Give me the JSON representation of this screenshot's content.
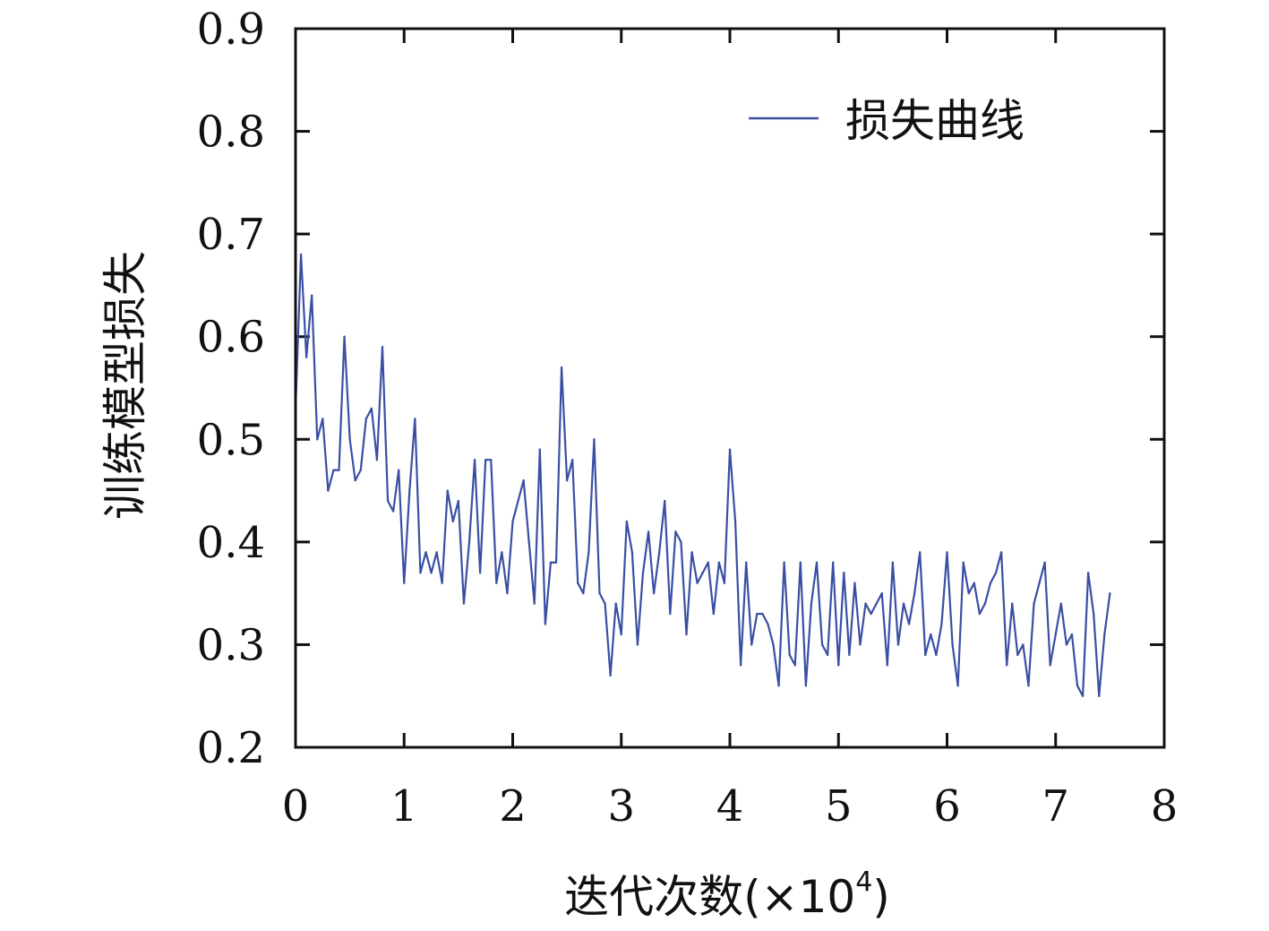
{
  "chart_data": {
    "type": "line",
    "title": "",
    "xlabel": "迭代次数(×10⁴)",
    "xlabel_main": "迭代次数(×10",
    "xlabel_exp": "4",
    "xlabel_close": ")",
    "ylabel": "训练模型损失",
    "xlim": [
      0,
      8
    ],
    "ylim": [
      0.2,
      0.9
    ],
    "xticks": [
      "0",
      "1",
      "2",
      "3",
      "4",
      "5",
      "6",
      "7",
      "8"
    ],
    "yticks": [
      "0.2",
      "0.3",
      "0.4",
      "0.5",
      "0.6",
      "0.7",
      "0.8",
      "0.9"
    ],
    "legend_position": "top-right",
    "grid": false,
    "series": [
      {
        "name": "损失曲线",
        "color": "#3a4fa3",
        "x": [
          0,
          0.05,
          0.1,
          0.15,
          0.2,
          0.25,
          0.3,
          0.35,
          0.4,
          0.45,
          0.5,
          0.55,
          0.6,
          0.65,
          0.7,
          0.75,
          0.8,
          0.85,
          0.9,
          0.95,
          1.0,
          1.05,
          1.1,
          1.15,
          1.2,
          1.25,
          1.3,
          1.35,
          1.4,
          1.45,
          1.5,
          1.55,
          1.6,
          1.65,
          1.7,
          1.75,
          1.8,
          1.85,
          1.9,
          1.95,
          2.0,
          2.05,
          2.1,
          2.15,
          2.2,
          2.25,
          2.3,
          2.35,
          2.4,
          2.45,
          2.5,
          2.55,
          2.6,
          2.65,
          2.7,
          2.75,
          2.8,
          2.85,
          2.9,
          2.95,
          3.0,
          3.05,
          3.1,
          3.15,
          3.2,
          3.25,
          3.3,
          3.35,
          3.4,
          3.45,
          3.5,
          3.55,
          3.6,
          3.65,
          3.7,
          3.75,
          3.8,
          3.85,
          3.9,
          3.95,
          4.0,
          4.05,
          4.1,
          4.15,
          4.2,
          4.25,
          4.3,
          4.35,
          4.4,
          4.45,
          4.5,
          4.55,
          4.6,
          4.65,
          4.7,
          4.75,
          4.8,
          4.85,
          4.9,
          4.95,
          5.0,
          5.05,
          5.1,
          5.15,
          5.2,
          5.25,
          5.3,
          5.35,
          5.4,
          5.45,
          5.5,
          5.55,
          5.6,
          5.65,
          5.7,
          5.75,
          5.8,
          5.85,
          5.9,
          5.95,
          6.0,
          6.05,
          6.1,
          6.15,
          6.2,
          6.25,
          6.3,
          6.35,
          6.4,
          6.45,
          6.5,
          6.55,
          6.6,
          6.65,
          6.7,
          6.75,
          6.8,
          6.85,
          6.9,
          6.95,
          7.0,
          7.05,
          7.1,
          7.15,
          7.2,
          7.25,
          7.3,
          7.35,
          7.4,
          7.45,
          7.5
        ],
        "values": [
          0.53,
          0.68,
          0.58,
          0.64,
          0.5,
          0.52,
          0.45,
          0.47,
          0.47,
          0.6,
          0.5,
          0.46,
          0.47,
          0.52,
          0.53,
          0.48,
          0.59,
          0.44,
          0.43,
          0.47,
          0.36,
          0.45,
          0.52,
          0.37,
          0.39,
          0.37,
          0.39,
          0.36,
          0.45,
          0.42,
          0.44,
          0.34,
          0.4,
          0.48,
          0.37,
          0.48,
          0.48,
          0.36,
          0.39,
          0.35,
          0.42,
          0.44,
          0.46,
          0.4,
          0.34,
          0.49,
          0.32,
          0.38,
          0.38,
          0.57,
          0.46,
          0.48,
          0.36,
          0.35,
          0.39,
          0.5,
          0.35,
          0.34,
          0.27,
          0.34,
          0.31,
          0.42,
          0.39,
          0.3,
          0.37,
          0.41,
          0.35,
          0.39,
          0.44,
          0.33,
          0.41,
          0.4,
          0.31,
          0.39,
          0.36,
          0.37,
          0.38,
          0.33,
          0.38,
          0.36,
          0.49,
          0.42,
          0.28,
          0.38,
          0.3,
          0.33,
          0.33,
          0.32,
          0.3,
          0.26,
          0.38,
          0.29,
          0.28,
          0.38,
          0.26,
          0.34,
          0.38,
          0.3,
          0.29,
          0.38,
          0.28,
          0.37,
          0.29,
          0.36,
          0.3,
          0.34,
          0.33,
          0.34,
          0.35,
          0.28,
          0.38,
          0.3,
          0.34,
          0.32,
          0.35,
          0.39,
          0.29,
          0.31,
          0.29,
          0.32,
          0.39,
          0.3,
          0.26,
          0.38,
          0.35,
          0.36,
          0.33,
          0.34,
          0.36,
          0.37,
          0.39,
          0.28,
          0.34,
          0.29,
          0.3,
          0.26,
          0.34,
          0.36,
          0.38,
          0.28,
          0.31,
          0.34,
          0.3,
          0.31,
          0.26,
          0.25,
          0.37,
          0.33,
          0.25,
          0.31,
          0.35
        ]
      }
    ]
  }
}
